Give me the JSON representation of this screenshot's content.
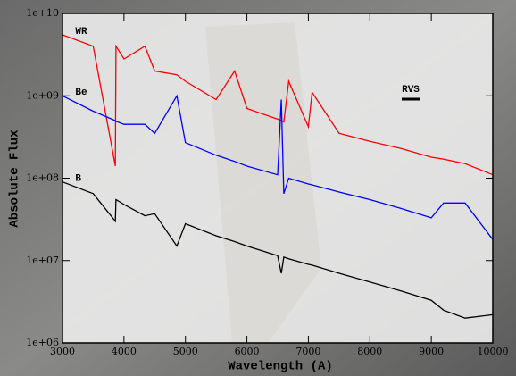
{
  "chart_data": {
    "type": "line",
    "xlabel": "Wavelength (A)",
    "ylabel": "Absolute Flux",
    "log_y": true,
    "x": [
      3000,
      3500,
      3860,
      3870,
      4000,
      4340,
      4500,
      4860,
      5000,
      5500,
      5800,
      6000,
      6500,
      6560,
      6600,
      6680,
      7000,
      7060,
      7500,
      8000,
      8500,
      9000,
      9200,
      9550,
      10000
    ],
    "series": [
      {
        "name": "WR",
        "color": "#ff0000",
        "values": [
          5500000000,
          4000000000,
          140000000,
          4000000000,
          2800000000,
          4000000000,
          2000000000,
          1800000000,
          1500000000,
          900000000,
          2000000000,
          700000000,
          520000000,
          500000000,
          480000000,
          1500000000,
          420000000,
          1100000000,
          350000000,
          280000000,
          230000000,
          180000000,
          170000000,
          150000000,
          110000000
        ]
      },
      {
        "name": "Be",
        "color": "#0000ff",
        "values": [
          1000000000,
          650000000,
          500000000,
          490000000,
          450000000,
          450000000,
          350000000,
          1000000000,
          270000000,
          190000000,
          160000000,
          140000000,
          110000000,
          900000000,
          65000000,
          100000000,
          85000000,
          83000000,
          68000000,
          55000000,
          43000000,
          33000000,
          50000000,
          50000000,
          18000000
        ]
      },
      {
        "name": "B",
        "color": "#000000",
        "values": [
          90000000,
          65000000,
          30000000,
          55000000,
          48000000,
          35000000,
          37000000,
          15000000,
          28000000,
          20000000,
          17000000,
          15000000,
          11500000,
          7000000,
          11000000,
          10500000,
          9000000,
          8800000,
          7000000,
          5500000,
          4300000,
          3300000,
          2500000,
          2000000,
          2200000
        ]
      }
    ],
    "annotations": [
      "RVS"
    ],
    "xlim": [
      3000,
      10000
    ],
    "xticks": [
      3000,
      4000,
      5000,
      6000,
      7000,
      8000,
      9000,
      10000
    ],
    "ylim": [
      1000000,
      10000000000
    ],
    "yticks": [
      {
        "value": 1000000,
        "label": "1e+06"
      },
      {
        "value": 10000000,
        "label": "1e+07"
      },
      {
        "value": 100000000,
        "label": "1e+08"
      },
      {
        "value": 1000000000,
        "label": "1e+09"
      },
      {
        "value": 10000000000,
        "label": "1e+10"
      }
    ]
  }
}
